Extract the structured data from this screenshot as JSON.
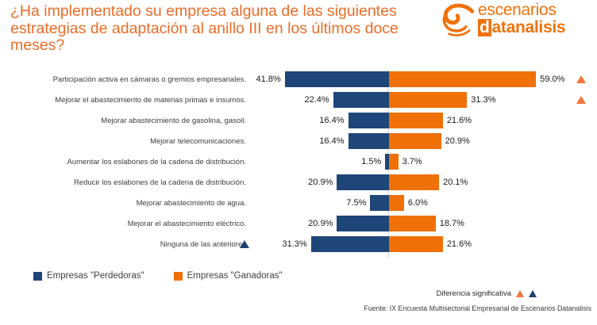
{
  "header": {
    "title": "¿Ha implementado su empresa alguna de las siguientes estrategias de adaptación al anillo III en los últimos doce meses?",
    "logo": {
      "line1": "escenarios",
      "line2_boxed": "d",
      "line2_rest": "atanalisis"
    }
  },
  "chart_data": {
    "type": "bar",
    "variant": "diverging-horizontal-tornado",
    "title": "¿Ha implementado su empresa alguna de las siguientes estrategias de adaptación al anillo III en los últimos doce meses?",
    "categories": [
      "Participación activa en cámaras o gremios empresariales.",
      "Mejorar el abastecimiento de materias primas e insumos.",
      "Mejorar abastecimiento de gasolina, gasoil.",
      "Mejorar telecomunicaciones.",
      "Aumentar los eslabones de la cadena de distribución.",
      "Reducir los eslabones de la cadena de distribución.",
      "Mejorar abastecimiento de agua.",
      "Mejorar el abastecimiento eléctrico.",
      "Ninguna de las anteriores"
    ],
    "series": [
      {
        "name": "Empresas \"Perdedoras\"",
        "side": "left",
        "color": "#1f4678",
        "values": [
          41.8,
          22.4,
          16.4,
          16.4,
          1.5,
          20.9,
          7.5,
          20.9,
          31.3
        ]
      },
      {
        "name": "Empresas \"Ganadoras\"",
        "side": "right",
        "color": "#ef7006",
        "values": [
          59.0,
          31.3,
          21.6,
          20.9,
          3.7,
          20.1,
          6.0,
          18.7,
          21.6
        ]
      }
    ],
    "value_label_suffix": "%",
    "significance_markers": [
      {
        "category_index": 0,
        "side": "right",
        "color": "#f5763c"
      },
      {
        "category_index": 1,
        "side": "right",
        "color": "#f5763c"
      },
      {
        "category_index": 8,
        "side": "left",
        "color": "#1f3e6e"
      }
    ],
    "axis": {
      "center": "shared-zero-baseline",
      "gridlines": false
    },
    "legend_position": "bottom-left"
  },
  "legend": {
    "items": [
      {
        "label": "Empresas \"Perdedoras\"",
        "color": "#1f4678"
      },
      {
        "label": "Empresas \"Ganadoras\"",
        "color": "#ef7006"
      }
    ]
  },
  "footer": {
    "significance_label": "Diferencia significativa",
    "significance_marker_colors": [
      "#f5763c",
      "#1f3e6e"
    ],
    "source": "Fuente: IX Encuesta Multisectorial Empresarial de Escenarios Datanalisis"
  },
  "colors": {
    "title_orange": "#ea6d28",
    "bar_blue": "#1f4678",
    "bar_orange": "#ef7006",
    "logo_orange": "#f07109"
  }
}
